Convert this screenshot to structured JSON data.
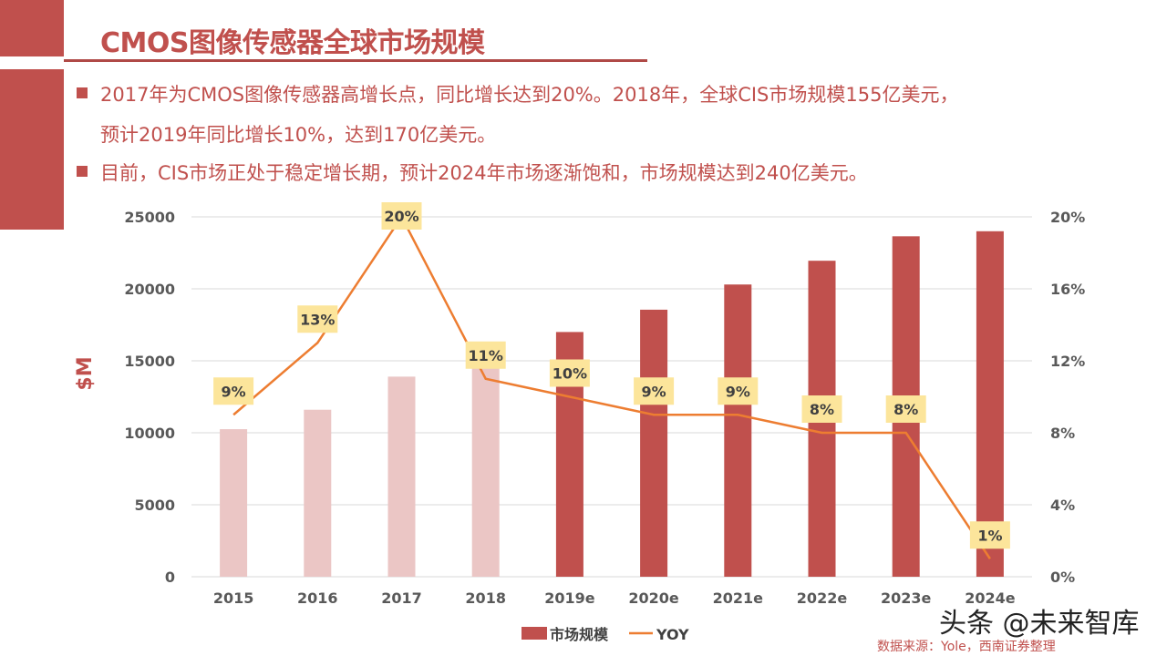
{
  "title": "CMOS图像传感器全球市场规模",
  "bullets": [
    "2017年为CMOS图像传感器高增长点，同比增长达到20%。2018年，全球CIS市场规模155亿美元，",
    "预计2019年同比增长10%，达到170亿美元。",
    "目前，CIS市场正处于稳定增长期，预计2024年市场逐渐饱和，市场规模达到240亿美元。"
  ],
  "source": "数据来源：Yole，西南证券整理",
  "watermark": "头条 @未来智库",
  "colors": {
    "accent": "#c0504d",
    "bar_actual": "#ebc6c5",
    "bar_forecast": "#c0504d",
    "line": "#ed7d31",
    "label_bg": "#fce59b"
  },
  "chart_data": {
    "type": "bar+line",
    "categories": [
      "2015",
      "2016",
      "2017",
      "2018",
      "2019e",
      "2020e",
      "2021e",
      "2022e",
      "2023e",
      "2024e"
    ],
    "ylabel": "$M",
    "ylim": [
      0,
      25000
    ],
    "yticks": [
      "0",
      "5000",
      "10000",
      "15000",
      "20000",
      "25000"
    ],
    "y2lim": [
      0,
      20
    ],
    "y2ticks": [
      "0%",
      "4%",
      "8%",
      "12%",
      "16%",
      "20%"
    ],
    "grid": true,
    "legend_position": "bottom",
    "series": [
      {
        "name": "市场规模",
        "type": "bar",
        "values": [
          10250,
          11600,
          13900,
          15500,
          17000,
          18550,
          20300,
          21950,
          23650,
          24000
        ]
      },
      {
        "name": "YOY",
        "type": "line",
        "values": [
          9,
          13,
          20,
          11,
          10,
          9,
          9,
          8,
          8,
          1
        ],
        "labels": [
          "9%",
          "13%",
          "20%",
          "11%",
          "10%",
          "9%",
          "9%",
          "8%",
          "8%",
          "1%"
        ]
      }
    ]
  }
}
